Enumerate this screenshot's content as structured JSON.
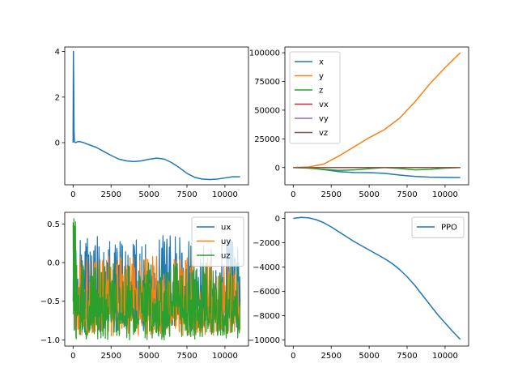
{
  "chart_data": [
    {
      "type": "line",
      "xlim": [
        -550,
        11550
      ],
      "ylim": [
        -1.85,
        4.2
      ],
      "xticks": [
        0,
        2500,
        5000,
        7500,
        10000
      ],
      "xtick_labels": [
        "0",
        "2500",
        "5000",
        "7500",
        "10000"
      ],
      "yticks": [
        4,
        2,
        0
      ],
      "ytick_labels": [
        "4",
        "2",
        "0"
      ],
      "series": [
        {
          "color": "#1f77b4",
          "x": [
            0,
            20,
            40,
            60,
            80,
            100,
            150,
            250,
            400,
            700,
            1000,
            1500,
            2000,
            2500,
            3000,
            3500,
            4000,
            4500,
            5000,
            5500,
            6000,
            6500,
            7000,
            7500,
            8000,
            8500,
            9000,
            9500,
            10000,
            10500,
            11000
          ],
          "y": [
            0.0,
            4.0,
            2.5,
            0.6,
            0.15,
            0.03,
            0.0,
            0.03,
            0.05,
            0.0,
            -0.08,
            -0.2,
            -0.38,
            -0.56,
            -0.72,
            -0.8,
            -0.83,
            -0.8,
            -0.73,
            -0.68,
            -0.72,
            -0.88,
            -1.1,
            -1.35,
            -1.52,
            -1.6,
            -1.62,
            -1.6,
            -1.55,
            -1.5,
            -1.5
          ]
        }
      ]
    },
    {
      "type": "line",
      "xlim": [
        -550,
        11550
      ],
      "ylim": [
        -15000,
        105000
      ],
      "xticks": [
        0,
        2500,
        5000,
        7500,
        10000
      ],
      "xtick_labels": [
        "0",
        "2500",
        "5000",
        "7500",
        "10000"
      ],
      "yticks": [
        100000,
        75000,
        50000,
        25000,
        0
      ],
      "ytick_labels": [
        "100000",
        "75000",
        "50000",
        "25000",
        "0"
      ],
      "legend": "upper left",
      "series": [
        {
          "name": "x",
          "color": "#1f77b4",
          "x": [
            0,
            1000,
            2000,
            3000,
            4000,
            5000,
            6000,
            7000,
            8000,
            9000,
            10000,
            11000
          ],
          "y": [
            0,
            -300,
            -1800,
            -3500,
            -4300,
            -4400,
            -5000,
            -6500,
            -7700,
            -8400,
            -8600,
            -8700
          ]
        },
        {
          "name": "y",
          "color": "#ff7f0e",
          "x": [
            0,
            1000,
            2000,
            3000,
            4000,
            5000,
            6000,
            7000,
            8000,
            9000,
            10000,
            11000
          ],
          "y": [
            0,
            500,
            3000,
            10000,
            18000,
            26000,
            33000,
            43000,
            57000,
            73000,
            87000,
            100000
          ]
        },
        {
          "name": "z",
          "color": "#2ca02c",
          "x": [
            0,
            1000,
            2000,
            3000,
            4000,
            5000,
            6000,
            7000,
            8000,
            9000,
            10000,
            11000
          ],
          "y": [
            0,
            -500,
            -1500,
            -2500,
            -2000,
            -1000,
            0,
            -800,
            -2000,
            -1500,
            -500,
            0
          ]
        },
        {
          "name": "vx",
          "color": "#d62728",
          "x": [
            0,
            11000
          ],
          "y": [
            0,
            0
          ]
        },
        {
          "name": "vy",
          "color": "#9467bd",
          "x": [
            0,
            11000
          ],
          "y": [
            0,
            0
          ]
        },
        {
          "name": "vz",
          "color": "#8c564b",
          "x": [
            0,
            11000
          ],
          "y": [
            0,
            0
          ]
        }
      ]
    },
    {
      "type": "line",
      "noisy": true,
      "xlim": [
        -550,
        11550
      ],
      "ylim": [
        -1.08,
        0.65
      ],
      "xticks": [
        0,
        2500,
        5000,
        7500,
        10000
      ],
      "xtick_labels": [
        "0",
        "2500",
        "5000",
        "7500",
        "10000"
      ],
      "yticks": [
        0.5,
        0.0,
        -0.5,
        -1.0
      ],
      "ytick_labels": [
        "0.5",
        "0.0",
        "−0.5",
        "−1.0"
      ],
      "legend": "upper right",
      "series": [
        {
          "name": "ux",
          "color": "#1f77b4",
          "x_range": [
            0,
            11000
          ],
          "band": [
            -0.9,
            0.35
          ]
        },
        {
          "name": "uy",
          "color": "#ff7f0e",
          "x_range": [
            0,
            11000
          ],
          "band": [
            -0.95,
            0.1
          ]
        },
        {
          "name": "uz",
          "color": "#2ca02c",
          "x_range": [
            0,
            11000
          ],
          "band": [
            -1.0,
            0.0
          ],
          "initial_peak": 0.57
        }
      ]
    },
    {
      "type": "line",
      "xlim": [
        -550,
        11550
      ],
      "ylim": [
        -10500,
        500
      ],
      "xticks": [
        0,
        2500,
        5000,
        7500,
        10000
      ],
      "xtick_labels": [
        "0",
        "2500",
        "5000",
        "7500",
        "10000"
      ],
      "yticks": [
        0,
        -2000,
        -4000,
        -6000,
        -8000,
        -10000
      ],
      "ytick_labels": [
        "0",
        "−2000",
        "−4000",
        "−6000",
        "−8000",
        "−10000"
      ],
      "legend": "upper right",
      "series": [
        {
          "name": "PPO",
          "color": "#1f77b4",
          "x": [
            0,
            500,
            1000,
            1500,
            2000,
            2500,
            3000,
            3500,
            4000,
            4500,
            5000,
            5500,
            6000,
            6500,
            7000,
            7500,
            8000,
            8500,
            9000,
            9500,
            10000,
            10500,
            11000
          ],
          "y": [
            0,
            80,
            50,
            -100,
            -350,
            -700,
            -1100,
            -1500,
            -1900,
            -2250,
            -2600,
            -2950,
            -3300,
            -3700,
            -4200,
            -4800,
            -5500,
            -6300,
            -7100,
            -7900,
            -8600,
            -9300,
            -9950
          ]
        }
      ]
    }
  ]
}
